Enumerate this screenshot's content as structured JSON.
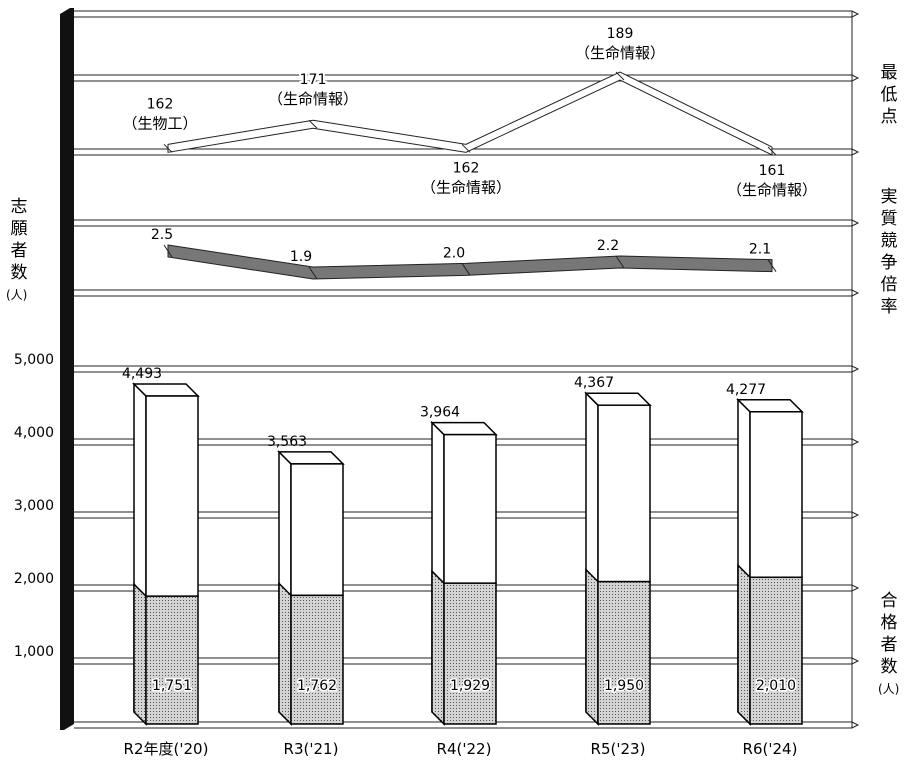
{
  "chart_data": {
    "type": "bar",
    "categories": [
      "R2年度('20)",
      "R3('21)",
      "R4('22)",
      "R5('23)",
      "R6('24)"
    ],
    "series": [
      {
        "name": "志願者数",
        "values": [
          4493,
          3563,
          3964,
          4367,
          4277
        ]
      },
      {
        "name": "合格者数",
        "values": [
          1751,
          1762,
          1929,
          1950,
          2010
        ]
      }
    ],
    "applicant_labels": [
      "4,493",
      "3,563",
      "3,964",
      "4,367",
      "4,277"
    ],
    "passer_labels": [
      "1,751",
      "1,762",
      "1,929",
      "1,950",
      "2,010"
    ],
    "y_axis": {
      "ylim": [
        0,
        5000
      ],
      "ticks": [
        "1,000",
        "2,000",
        "3,000",
        "4,000",
        "5,000"
      ],
      "tick_values": [
        1000,
        2000,
        3000,
        4000,
        5000
      ]
    },
    "competition_ratio": {
      "values": [
        2.5,
        1.9,
        2.0,
        2.2,
        2.1
      ],
      "labels": [
        "2.5",
        "1.9",
        "2.0",
        "2.2",
        "2.1"
      ]
    },
    "lowest_score": {
      "values": [
        162,
        171,
        162,
        189,
        161
      ],
      "labels": [
        "162",
        "171",
        "162",
        "189",
        "161"
      ],
      "departments": [
        "（生物工）",
        "（生命情報）",
        "（生命情報）",
        "（生命情報）",
        "（生命情報）"
      ]
    },
    "grid": true
  },
  "labels": {
    "left_axis_title": "志願者数",
    "left_axis_unit": "(人)",
    "right_title_lowest": "最低点",
    "right_title_ratio": "実質競争倍率",
    "right_title_passers": "合格者数",
    "right_title_passers_unit": "(人)"
  },
  "colors": {
    "passer_fill": "#c8c8c8",
    "ratio_fill": "#777777",
    "axis_bar": "#111111"
  }
}
